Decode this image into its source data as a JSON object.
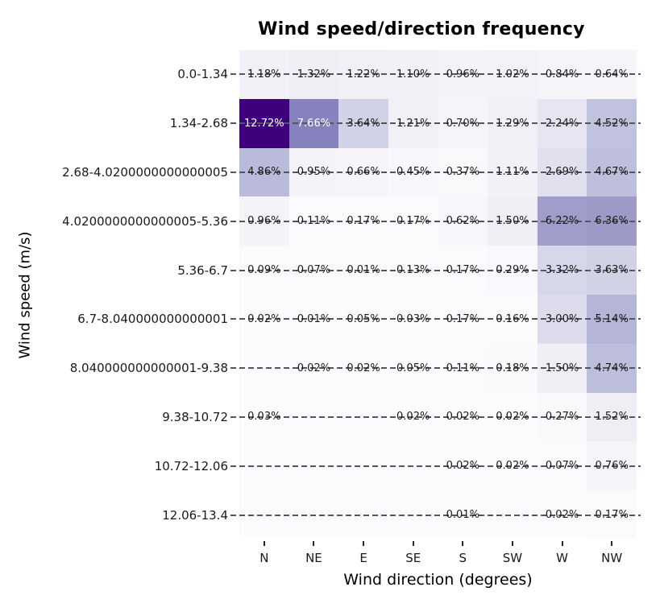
{
  "chart_data": {
    "type": "heatmap",
    "title": "Wind speed/direction frequency",
    "xlabel": "Wind direction (degrees)",
    "ylabel": "Wind speed (m/s)",
    "x_categories": [
      "N",
      "NE",
      "E",
      "SE",
      "S",
      "SW",
      "W",
      "NW"
    ],
    "y_categories": [
      "0.0-1.34",
      "1.34-2.68",
      "2.68-4.0200000000000005",
      "4.0200000000000005-5.36",
      "5.36-6.7",
      "6.7-8.040000000000001",
      "8.040000000000001-9.38",
      "9.38-10.72",
      "10.72-12.06",
      "12.06-13.4"
    ],
    "values_pct": [
      [
        1.18,
        1.32,
        1.22,
        1.1,
        0.96,
        1.02,
        0.84,
        0.64
      ],
      [
        12.72,
        7.66,
        3.64,
        1.21,
        0.7,
        1.29,
        2.24,
        4.52
      ],
      [
        4.86,
        0.95,
        0.66,
        0.45,
        0.37,
        1.11,
        2.69,
        4.67
      ],
      [
        0.96,
        0.11,
        0.17,
        0.17,
        0.62,
        1.5,
        6.22,
        6.36
      ],
      [
        0.09,
        0.07,
        0.01,
        0.13,
        0.17,
        0.29,
        3.32,
        3.63
      ],
      [
        0.02,
        0.01,
        0.05,
        0.03,
        0.17,
        0.16,
        3.0,
        5.14
      ],
      [
        null,
        0.02,
        0.02,
        0.05,
        0.11,
        0.18,
        1.5,
        4.74
      ],
      [
        0.03,
        null,
        null,
        0.02,
        0.02,
        0.02,
        0.27,
        1.52
      ],
      [
        null,
        null,
        null,
        null,
        0.02,
        0.02,
        0.07,
        0.76
      ],
      [
        null,
        null,
        null,
        null,
        0.01,
        null,
        0.02,
        0.17
      ]
    ],
    "cell_labels": [
      [
        "1.18%",
        "1.32%",
        "1.22%",
        "1.10%",
        "0.96%",
        "1.02%",
        "0.84%",
        "0.64%"
      ],
      [
        "12.72%",
        "7.66%",
        "3.64%",
        "1.21%",
        "0.70%",
        "1.29%",
        "2.24%",
        "4.52%"
      ],
      [
        "4.86%",
        "0.95%",
        "0.66%",
        "0.45%",
        "0.37%",
        "1.11%",
        "2.69%",
        "4.67%"
      ],
      [
        "0.96%",
        "0.11%",
        "0.17%",
        "0.17%",
        "0.62%",
        "1.50%",
        "6.22%",
        "6.36%"
      ],
      [
        "0.09%",
        "0.07%",
        "0.01%",
        "0.13%",
        "0.17%",
        "0.29%",
        "3.32%",
        "3.63%"
      ],
      [
        "0.02%",
        "0.01%",
        "0.05%",
        "0.03%",
        "0.17%",
        "0.16%",
        "3.00%",
        "5.14%"
      ],
      [
        "",
        "0.02%",
        "0.02%",
        "0.05%",
        "0.11%",
        "0.18%",
        "1.50%",
        "4.74%"
      ],
      [
        "0.03%",
        "",
        "",
        "0.02%",
        "0.02%",
        "0.02%",
        "0.27%",
        "1.52%"
      ],
      [
        "",
        "",
        "",
        "",
        "0.02%",
        "0.02%",
        "0.07%",
        "0.76%"
      ],
      [
        "",
        "",
        "",
        "",
        "0.01%",
        "",
        "0.02%",
        "0.17%"
      ]
    ],
    "vmin": 0,
    "vmax": 12.72,
    "colormap": "Purples",
    "colormap_stops": [
      "#fcfbfd",
      "#efedf5",
      "#dadaeb",
      "#bcbddc",
      "#9e9ac8",
      "#807dba",
      "#6a51a3",
      "#54278f",
      "#3f007d"
    ],
    "annotation_dark_text": "#1a1a1a",
    "annotation_light_text": "#ffffff",
    "row_dash_color": "#55555f",
    "grid": "dashed-horizontal-row-lines",
    "legend_position": "none"
  }
}
